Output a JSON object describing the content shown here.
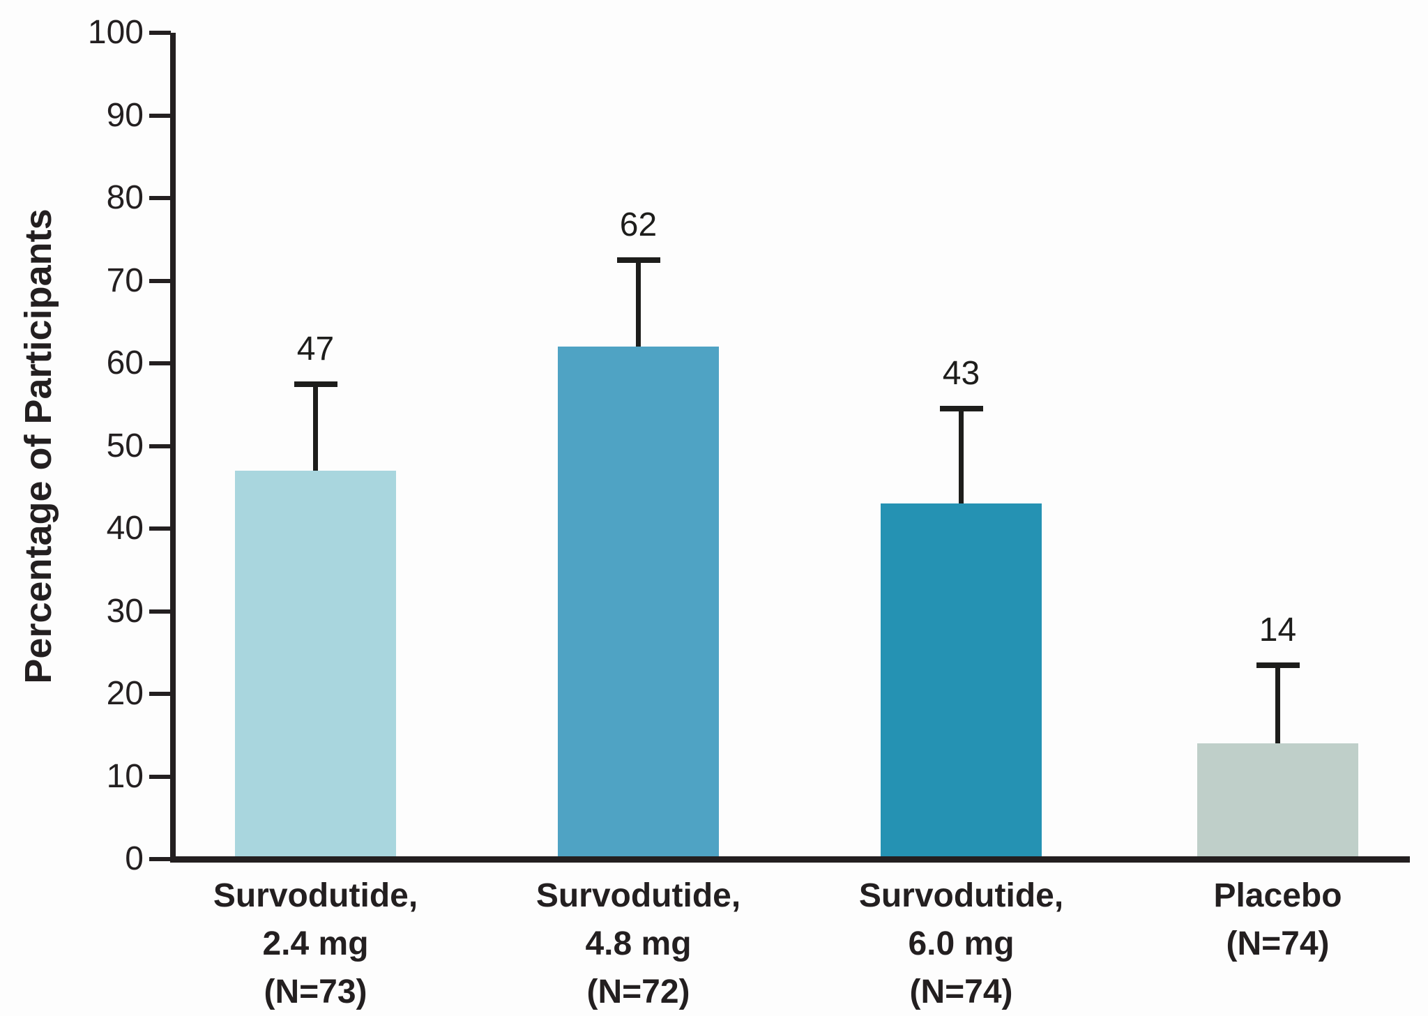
{
  "chart_data": {
    "type": "bar",
    "title": "",
    "xlabel": "",
    "ylabel": "Percentage of Participants",
    "ylim": [
      0,
      100
    ],
    "yticks": [
      0,
      10,
      20,
      30,
      40,
      50,
      60,
      70,
      80,
      90,
      100
    ],
    "grid": false,
    "legend": false,
    "background": "#fdfdfd",
    "axis_color": "#231f20",
    "error_bars": "upper only",
    "categories": [
      "Survodutide, 2.4 mg (N=73)",
      "Survodutide, 4.8 mg (N=72)",
      "Survodutide, 6.0 mg (N=74)",
      "Placebo (N=74)"
    ],
    "values": [
      47,
      62,
      43,
      14
    ],
    "bars": [
      {
        "category": "Survodutide, 2.4 mg (N=73)",
        "category_lines": [
          "Survodutide,",
          "2.4 mg",
          "(N=73)"
        ],
        "value": 47,
        "value_label": "47",
        "error_bar_top": 57.5,
        "color": "#a9d6de"
      },
      {
        "category": "Survodutide, 4.8 mg (N=72)",
        "category_lines": [
          "Survodutide,",
          "4.8 mg",
          "(N=72)"
        ],
        "value": 62,
        "value_label": "62",
        "error_bar_top": 72.5,
        "color": "#4fa3c4"
      },
      {
        "category": "Survodutide, 6.0 mg (N=74)",
        "category_lines": [
          "Survodutide,",
          "6.0 mg",
          "(N=74)"
        ],
        "value": 43,
        "value_label": "43",
        "error_bar_top": 54.5,
        "color": "#2592b3"
      },
      {
        "category": "Placebo (N=74)",
        "category_lines": [
          "Placebo",
          "(N=74)"
        ],
        "value": 14,
        "value_label": "14",
        "error_bar_top": 23.5,
        "color": "#bfcfc9"
      }
    ]
  }
}
